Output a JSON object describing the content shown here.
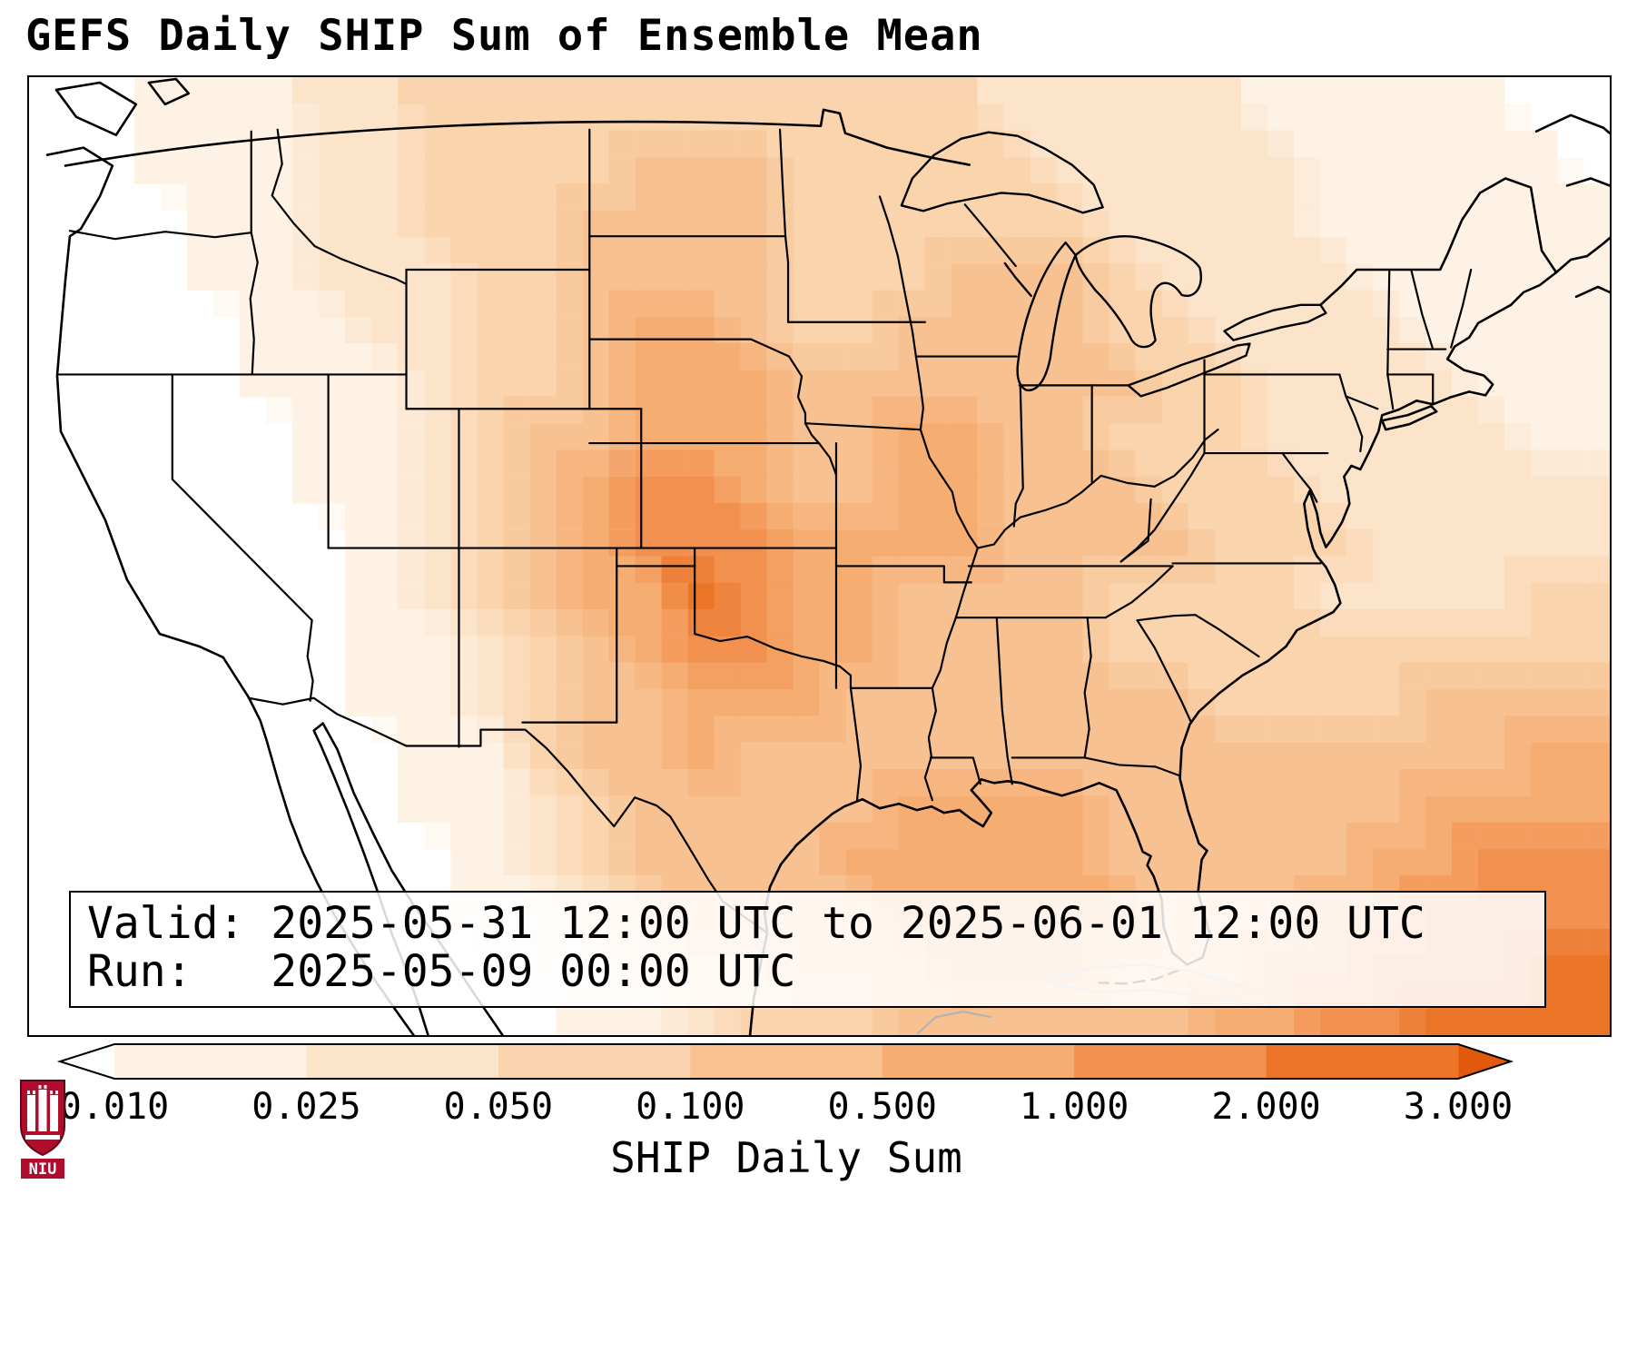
{
  "title": "GEFS Daily SHIP Sum of Ensemble Mean",
  "info_box": {
    "valid_line": "Valid: 2025-05-31 12:00 UTC to 2025-06-01 12:00 UTC",
    "run_line": "Run:   2025-05-09 00:00 UTC"
  },
  "colorbar": {
    "label": "SHIP Daily Sum",
    "ticks": [
      "0.010",
      "0.025",
      "0.050",
      "0.100",
      "0.500",
      "1.000",
      "2.000",
      "3.000"
    ],
    "segment_colors": [
      "#fdf2e4",
      "#fce4cb",
      "#fad4ae",
      "#f8c292",
      "#f6ad72",
      "#f29150",
      "#ec7527"
    ],
    "under_color": "#ffffff",
    "over_color": "#e0590c",
    "outline_color": "#000000"
  },
  "logo": {
    "text": "NIU",
    "primary_color": "#b00c2c"
  },
  "chart_data": {
    "type": "heatmap",
    "title": "GEFS Daily SHIP Sum of Ensemble Mean",
    "field": "SHIP Daily Sum",
    "valid": "2025-05-31 12:00 UTC to 2025-06-01 12:00 UTC",
    "run": "2025-05-09 00:00 UTC",
    "region": "Continental United States with surrounding ocean, southern Canada and northern Mexico",
    "colorbar_ticks": [
      0.01,
      0.025,
      0.05,
      0.1,
      0.5,
      1.0,
      2.0,
      3.0
    ],
    "colorbar_extend": "both",
    "legend_position": "bottom",
    "maxima": [
      {
        "area": "central Kansas / northern Oklahoma",
        "approx_value": "2.0-3.0"
      },
      {
        "area": "Nebraska / Kansas / Missouri corridor",
        "approx_value": "1.0-2.0"
      },
      {
        "area": "Gulf Stream southeast of Florida",
        "approx_value": "1.0-3.0"
      },
      {
        "area": "Gulf of Mexico and Gulf Coast states",
        "approx_value": "0.5-1.0"
      }
    ],
    "minima": [
      {
        "area": "California / Nevada / Pacific coast",
        "approx_value": "< 0.01"
      },
      {
        "area": "Baja California and northwest Mexico",
        "approx_value": "< 0.025"
      }
    ],
    "palette": [
      "#ffffff",
      "#fdf2e4",
      "#fce4cb",
      "#fad4ae",
      "#f8c292",
      "#f6ad72",
      "#f29150",
      "#ec7527"
    ],
    "level_bins": "level i shades between colorbar_ticks[i-1] and colorbar_ticks[i]; 0 = below 0.010",
    "grid_rows": [
      "001112233333333333222221111100",
      "001112233334443333322222111110",
      "000112233344443333332222111111",
      "000112223344443334443222211111",
      "000011223345543344443322221111",
      "000011123345554444444332222111",
      "000001123445554455443332222211",
      "000001123456654455444333222222",
      "000000123456665555444433322222",
      "000000123455765544443333222233",
      "000000112345665544443333333333",
      "000000112344555444444433334444",
      "000000011344544444444444444455",
      "000000011234444455554444445555",
      "000000001234444555554444455666",
      "000000001123444455555444556666",
      "000000000112334445554445566677",
      "000000000011233344444455667777"
    ]
  }
}
